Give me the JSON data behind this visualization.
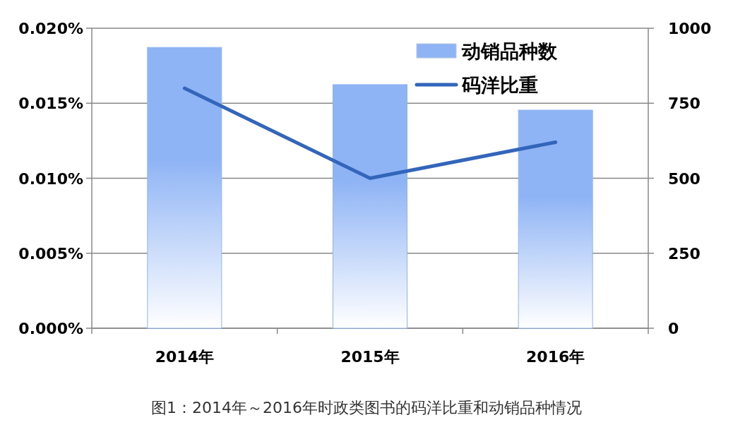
{
  "chart_data": {
    "type": "bar",
    "categories": [
      "2014年",
      "2015年",
      "2016年"
    ],
    "series": [
      {
        "name": "动销品种数",
        "axis": "y2",
        "color": "#8fb4f5",
        "values": [
          936,
          812,
          727
        ]
      },
      {
        "name": "码洋比重",
        "type": "line",
        "color": "#3366bb",
        "values": [
          0.016,
          0.01,
          0.0124
        ]
      }
    ],
    "ylim": [
      0,
      0.02
    ],
    "yticks": [
      {
        "value": 0,
        "label": "0.000%"
      },
      {
        "value": 0.005,
        "label": "0.005%"
      },
      {
        "value": 0.01,
        "label": "0.010%"
      },
      {
        "value": 0.015,
        "label": "0.015%"
      },
      {
        "value": 0.02,
        "label": "0.020%"
      }
    ],
    "y2lim": [
      0,
      1000
    ],
    "y2ticks": [
      0,
      250,
      500,
      750,
      1000
    ],
    "grid": "y",
    "legend": "top right",
    "marker": "none",
    "annotations": [
      "图1：2014年～2016年时政类图书的码洋比重和动销品种情况"
    ]
  }
}
